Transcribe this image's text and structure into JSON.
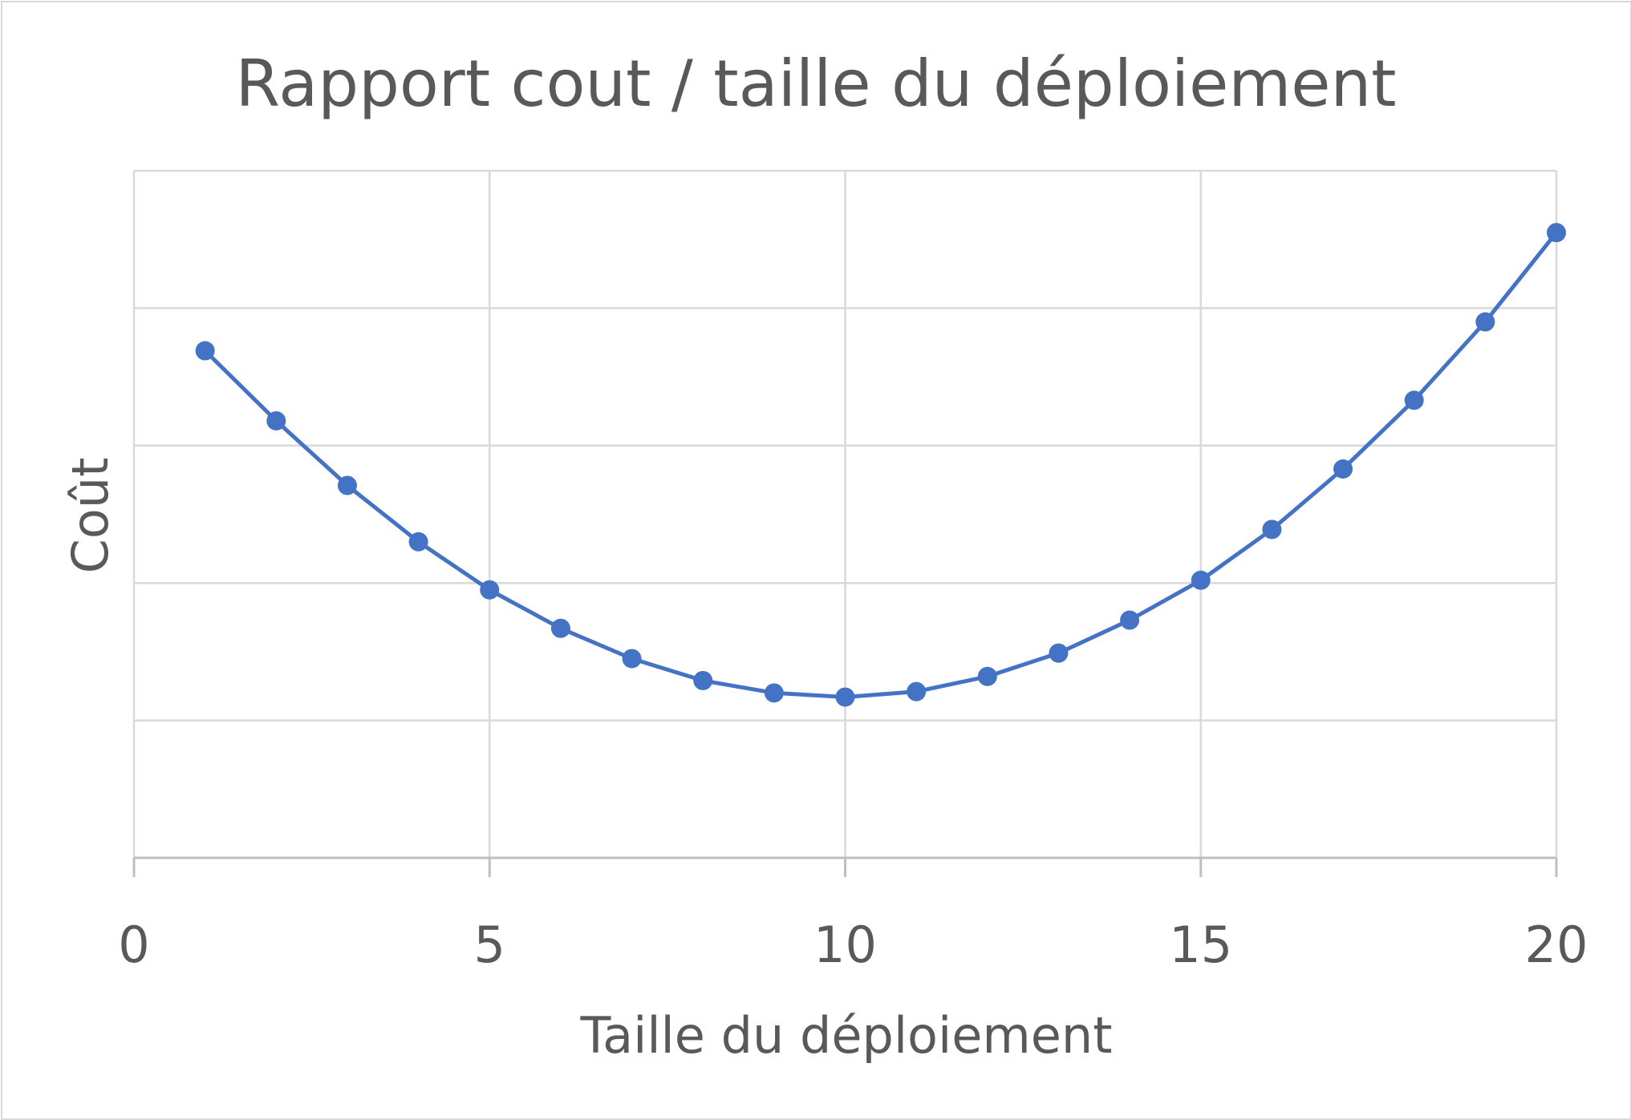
{
  "chart_data": {
    "type": "line",
    "title": "Rapport cout / taille du déploiement",
    "xlabel": "Taille du déploiement",
    "ylabel": "Coût",
    "xlim": [
      0,
      20
    ],
    "xticks": [
      0,
      5,
      10,
      15,
      20
    ],
    "ylim": [
      0,
      5
    ],
    "y_tick_labels_shown": false,
    "grid": true,
    "legend": "none",
    "series": [
      {
        "color": "#4472C4",
        "marker": "circle",
        "x": [
          1,
          2,
          3,
          4,
          5,
          6,
          7,
          8,
          9,
          10,
          11,
          12,
          13,
          14,
          15,
          16,
          17,
          18,
          19,
          20
        ],
        "y": [
          3.69,
          3.18,
          2.71,
          2.3,
          1.95,
          1.67,
          1.45,
          1.29,
          1.2,
          1.17,
          1.21,
          1.32,
          1.49,
          1.73,
          2.02,
          2.39,
          2.83,
          3.33,
          3.9,
          4.55
        ]
      }
    ]
  }
}
